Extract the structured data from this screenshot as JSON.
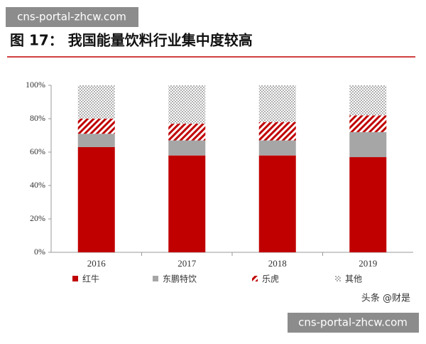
{
  "watermark": "cns-portal-zhcw.com",
  "credit": "头条 @财是",
  "chart_data": {
    "type": "stacked-bar",
    "title": "图 17： 我国能量饮料行业集中度较高",
    "categories": [
      "2016",
      "2017",
      "2018",
      "2019"
    ],
    "series": [
      {
        "name": "红牛",
        "color": "#c00000",
        "pattern": "solid",
        "values": [
          63,
          58,
          58,
          57
        ]
      },
      {
        "name": "东鹏特饮",
        "color": "#a6a6a6",
        "pattern": "solid",
        "values": [
          8,
          9,
          9,
          15
        ]
      },
      {
        "name": "乐虎",
        "color": "#c00000",
        "pattern": "hatch",
        "values": [
          9,
          10,
          11,
          10
        ]
      },
      {
        "name": "其他",
        "color": "#a6a6a6",
        "pattern": "dots",
        "values": [
          20,
          23,
          22,
          18
        ]
      }
    ],
    "ylim": [
      0,
      100
    ],
    "yticks": [
      {
        "value": 0,
        "label": "0%"
      },
      {
        "value": 20,
        "label": "20%"
      },
      {
        "value": 40,
        "label": "40%"
      },
      {
        "value": 60,
        "label": "60%"
      },
      {
        "value": 80,
        "label": "80%"
      },
      {
        "value": 100,
        "label": "100%"
      }
    ],
    "legend": "bottom"
  }
}
